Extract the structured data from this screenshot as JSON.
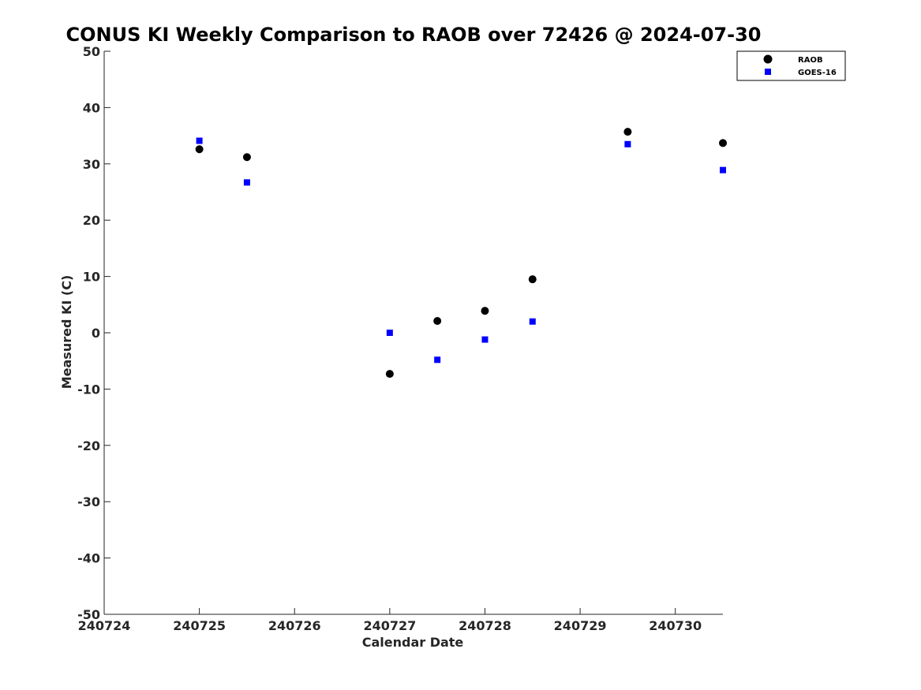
{
  "chart_data": {
    "type": "scatter",
    "title": "CONUS KI Weekly Comparison to RAOB over 72426 @ 2024-07-30",
    "xlabel": "Calendar Date",
    "ylabel": "Measured KI (C)",
    "x_ticks": [
      "240724",
      "240725",
      "240726",
      "240727",
      "240728",
      "240729",
      "240730"
    ],
    "y_ticks": [
      "50",
      "40",
      "30",
      "20",
      "10",
      "0",
      "-10",
      "-20",
      "-30",
      "-40",
      "-50"
    ],
    "xlim": [
      "2024-07-24",
      "2024-07-30 12:00"
    ],
    "ylim": [
      -50,
      50
    ],
    "grid": false,
    "legend_position": "top-right",
    "series": [
      {
        "name": "RAOB",
        "marker": "circle",
        "color": "#000000",
        "points": [
          {
            "x": "2024-07-25 00:00",
            "y": 32.6
          },
          {
            "x": "2024-07-25 12:00",
            "y": 31.2
          },
          {
            "x": "2024-07-27 00:00",
            "y": -7.3
          },
          {
            "x": "2024-07-27 12:00",
            "y": 2.1
          },
          {
            "x": "2024-07-28 00:00",
            "y": 3.9
          },
          {
            "x": "2024-07-28 12:00",
            "y": 9.5
          },
          {
            "x": "2024-07-29 12:00",
            "y": 35.7
          },
          {
            "x": "2024-07-30 12:00",
            "y": 33.7
          }
        ]
      },
      {
        "name": "GOES-16",
        "marker": "square",
        "color": "#0000ff",
        "points": [
          {
            "x": "2024-07-25 00:00",
            "y": 34.1
          },
          {
            "x": "2024-07-25 12:00",
            "y": 26.7
          },
          {
            "x": "2024-07-27 00:00",
            "y": 0.0
          },
          {
            "x": "2024-07-27 12:00",
            "y": -4.8
          },
          {
            "x": "2024-07-28 00:00",
            "y": -1.2
          },
          {
            "x": "2024-07-28 12:00",
            "y": 2.0
          },
          {
            "x": "2024-07-29 12:00",
            "y": 33.5
          },
          {
            "x": "2024-07-30 12:00",
            "y": 28.9
          }
        ]
      }
    ]
  }
}
